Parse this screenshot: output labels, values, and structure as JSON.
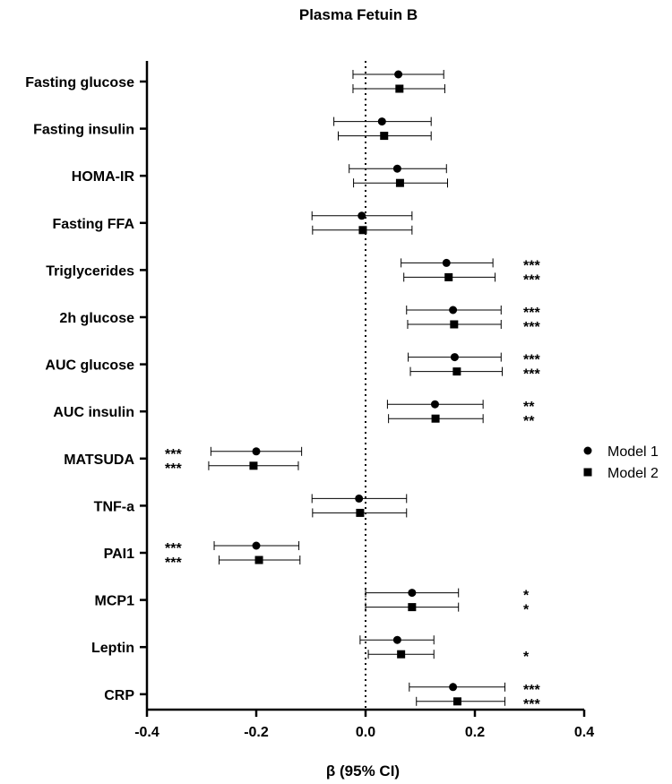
{
  "chart_data": {
    "type": "forest",
    "title": "Plasma Fetuin B",
    "xlabel": "β (95% CI)",
    "xlim": [
      -0.4,
      0.4
    ],
    "xticks": [
      -0.4,
      -0.2,
      0.0,
      0.2,
      0.4
    ],
    "xtick_labels": [
      "-0.4",
      "-0.2",
      "0.0",
      "0.2",
      "0.4"
    ],
    "reference_line": 0.0,
    "categories": [
      "Fasting glucose",
      "Fasting insulin",
      "HOMA-IR",
      "Fasting FFA",
      "Triglycerides",
      "2h glucose",
      "AUC glucose",
      "AUC insulin",
      "MATSUDA",
      "TNF-a",
      "PAI1",
      "MCP1",
      "Leptin",
      "CRP"
    ],
    "series": [
      {
        "name": "Model 1",
        "marker": "circle",
        "estimates": [
          0.06,
          0.03,
          0.058,
          -0.007,
          0.148,
          0.16,
          0.163,
          0.127,
          -0.2,
          -0.012,
          -0.2,
          0.085,
          0.058,
          0.16
        ],
        "lower": [
          -0.023,
          -0.058,
          -0.03,
          -0.098,
          0.065,
          0.075,
          0.078,
          0.04,
          -0.283,
          -0.098,
          -0.277,
          0.0,
          -0.01,
          0.08
        ],
        "upper": [
          0.143,
          0.12,
          0.148,
          0.085,
          0.233,
          0.248,
          0.248,
          0.215,
          -0.117,
          0.075,
          -0.122,
          0.17,
          0.125,
          0.255
        ],
        "significance": [
          "",
          "",
          "",
          "",
          "***",
          "***",
          "***",
          "**",
          "***",
          "",
          "***",
          "*",
          "",
          "***"
        ]
      },
      {
        "name": "Model 2",
        "marker": "square",
        "estimates": [
          0.062,
          0.034,
          0.063,
          -0.005,
          0.152,
          0.162,
          0.167,
          0.128,
          -0.205,
          -0.01,
          -0.195,
          0.085,
          0.065,
          0.168
        ],
        "lower": [
          -0.023,
          -0.05,
          -0.022,
          -0.097,
          0.07,
          0.077,
          0.082,
          0.042,
          -0.287,
          -0.097,
          -0.268,
          0.0,
          0.005,
          0.093
        ],
        "upper": [
          0.145,
          0.12,
          0.15,
          0.085,
          0.237,
          0.248,
          0.25,
          0.215,
          -0.123,
          0.075,
          -0.12,
          0.17,
          0.125,
          0.255
        ],
        "significance": [
          "",
          "",
          "",
          "",
          "***",
          "***",
          "***",
          "**",
          "***",
          "",
          "***",
          "*",
          "*",
          "***"
        ]
      }
    ],
    "legend": {
      "position": "right",
      "entries": [
        "Model 1",
        "Model 2"
      ]
    }
  }
}
